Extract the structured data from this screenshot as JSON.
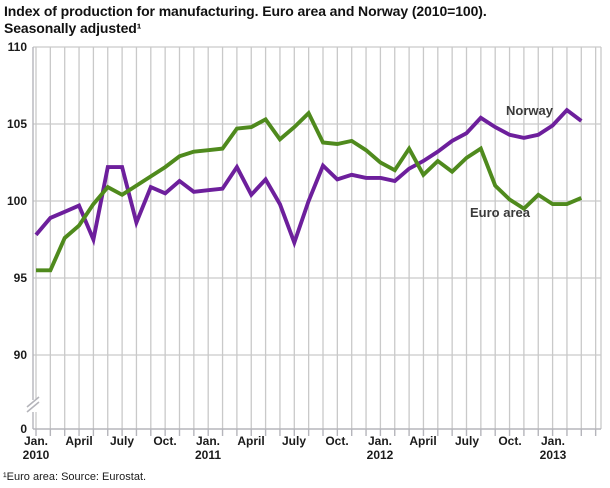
{
  "page": {
    "title_line1": "Index of production for manufacturing. Euro area and Norway (2010=100).",
    "title_line2": "Seasonally adjusted¹",
    "footnote": "¹Euro area: Source: Eurostat."
  },
  "chart_data": {
    "type": "line",
    "title": "Index of production for manufacturing. Euro area and Norway (2010=100). Seasonally adjusted",
    "x_range": "Jan 2010 - Mar 2013",
    "grid": "both",
    "legend": "inline-labels",
    "y_axis_break_between": [
      0,
      90
    ],
    "ylim_linear": [
      90,
      110
    ],
    "y_ticks": [
      110,
      105,
      100,
      95,
      90,
      0
    ],
    "x_ticks": [
      {
        "pos": 0,
        "label": "Jan.",
        "year": "2010"
      },
      {
        "pos": 3,
        "label": "April"
      },
      {
        "pos": 6,
        "label": "July"
      },
      {
        "pos": 9,
        "label": "Oct."
      },
      {
        "pos": 12,
        "label": "Jan.",
        "year": "2011"
      },
      {
        "pos": 15,
        "label": "April"
      },
      {
        "pos": 18,
        "label": "July"
      },
      {
        "pos": 21,
        "label": "Oct."
      },
      {
        "pos": 24,
        "label": "Jan.",
        "year": "2012"
      },
      {
        "pos": 27,
        "label": "April"
      },
      {
        "pos": 30,
        "label": "July"
      },
      {
        "pos": 33,
        "label": "Oct."
      },
      {
        "pos": 36,
        "label": "Jan.",
        "year": "2013"
      }
    ],
    "categories": [
      "Jan 2010",
      "Feb 2010",
      "Mar 2010",
      "Apr 2010",
      "May 2010",
      "Jun 2010",
      "Jul 2010",
      "Aug 2010",
      "Sep 2010",
      "Oct 2010",
      "Nov 2010",
      "Dec 2010",
      "Jan 2011",
      "Feb 2011",
      "Mar 2011",
      "Apr 2011",
      "May 2011",
      "Jun 2011",
      "Jul 2011",
      "Aug 2011",
      "Sep 2011",
      "Oct 2011",
      "Nov 2011",
      "Dec 2011",
      "Jan 2012",
      "Feb 2012",
      "Mar 2012",
      "Apr 2012",
      "May 2012",
      "Jun 2012",
      "Jul 2012",
      "Aug 2012",
      "Sep 2012",
      "Oct 2012",
      "Nov 2012",
      "Dec 2012",
      "Jan 2013",
      "Feb 2013",
      "Mar 2013"
    ],
    "series": [
      {
        "name": "Norway",
        "color": "#6d1f9c",
        "values": [
          97.8,
          98.9,
          99.3,
          99.7,
          97.5,
          102.2,
          102.2,
          98.6,
          100.9,
          100.5,
          101.3,
          100.6,
          100.7,
          100.8,
          102.2,
          100.4,
          101.4,
          99.8,
          97.3,
          100.0,
          102.3,
          101.4,
          101.7,
          101.5,
          101.5,
          101.3,
          102.1,
          102.6,
          103.2,
          103.9,
          104.4,
          105.4,
          104.8,
          104.3,
          104.1,
          104.3,
          104.9,
          105.9,
          105.2
        ]
      },
      {
        "name": "Euro area",
        "color": "#4f8a1d",
        "values": [
          95.5,
          95.5,
          97.6,
          98.4,
          99.8,
          100.9,
          100.4,
          101.0,
          101.6,
          102.2,
          102.9,
          103.2,
          103.3,
          103.4,
          104.7,
          104.8,
          105.3,
          104.0,
          104.8,
          105.7,
          103.8,
          103.7,
          103.9,
          103.3,
          102.5,
          102.0,
          103.4,
          101.7,
          102.6,
          101.9,
          102.8,
          103.4,
          101.0,
          100.1,
          99.5,
          100.4,
          99.8,
          99.8,
          100.2
        ]
      }
    ]
  },
  "style": {
    "grid_color": "#c9c9c9",
    "axis_color": "#b5b5bb",
    "text_color": "#1b1b1b",
    "background": "#ffffff"
  }
}
